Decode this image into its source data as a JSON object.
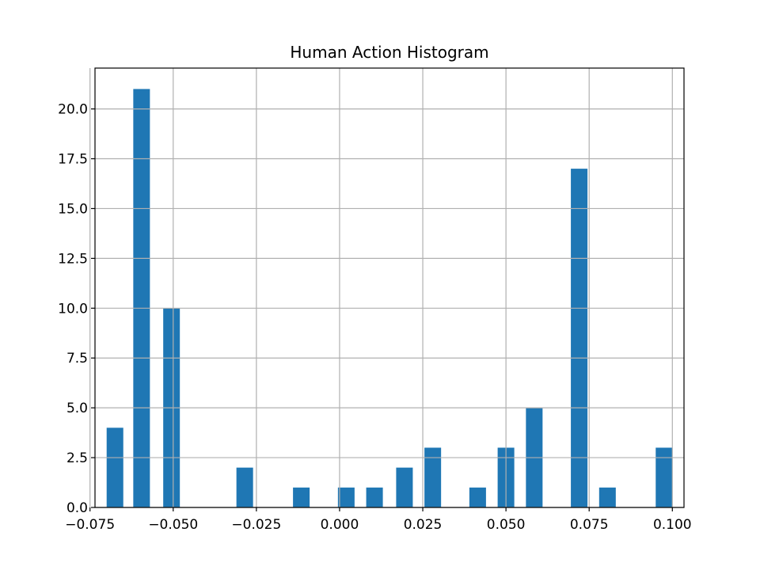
{
  "chart_data": {
    "type": "bar",
    "title": "Human Action Histogram",
    "xlabel": "",
    "ylabel": "",
    "grid": true,
    "bar_color": "#1f77b4",
    "xlim": [
      -0.0735,
      0.1035
    ],
    "ylim": [
      0,
      22.05
    ],
    "bin_width": 0.005,
    "bars": [
      {
        "x": -0.0675,
        "value": 4
      },
      {
        "x": -0.0595,
        "value": 21
      },
      {
        "x": -0.0505,
        "value": 10
      },
      {
        "x": -0.0285,
        "value": 2
      },
      {
        "x": -0.0115,
        "value": 1
      },
      {
        "x": 0.002,
        "value": 1
      },
      {
        "x": 0.0105,
        "value": 1
      },
      {
        "x": 0.0195,
        "value": 2
      },
      {
        "x": 0.028,
        "value": 3
      },
      {
        "x": 0.0415,
        "value": 1
      },
      {
        "x": 0.05,
        "value": 3
      },
      {
        "x": 0.0585,
        "value": 5
      },
      {
        "x": 0.072,
        "value": 17
      },
      {
        "x": 0.0805,
        "value": 1
      },
      {
        "x": 0.0975,
        "value": 3
      }
    ],
    "x_ticks": [
      {
        "value": -0.075,
        "label": "−0.075"
      },
      {
        "value": -0.05,
        "label": "−0.050"
      },
      {
        "value": -0.025,
        "label": "−0.025"
      },
      {
        "value": 0.0,
        "label": "0.000"
      },
      {
        "value": 0.025,
        "label": "0.025"
      },
      {
        "value": 0.05,
        "label": "0.050"
      },
      {
        "value": 0.075,
        "label": "0.075"
      },
      {
        "value": 0.1,
        "label": "0.100"
      }
    ],
    "y_ticks": [
      {
        "value": 0,
        "label": "0.0"
      },
      {
        "value": 2.5,
        "label": "2.5"
      },
      {
        "value": 5,
        "label": "5.0"
      },
      {
        "value": 7.5,
        "label": "7.5"
      },
      {
        "value": 10,
        "label": "10.0"
      },
      {
        "value": 12.5,
        "label": "12.5"
      },
      {
        "value": 15,
        "label": "15.0"
      },
      {
        "value": 17.5,
        "label": "17.5"
      },
      {
        "value": 20,
        "label": "20.0"
      }
    ]
  }
}
